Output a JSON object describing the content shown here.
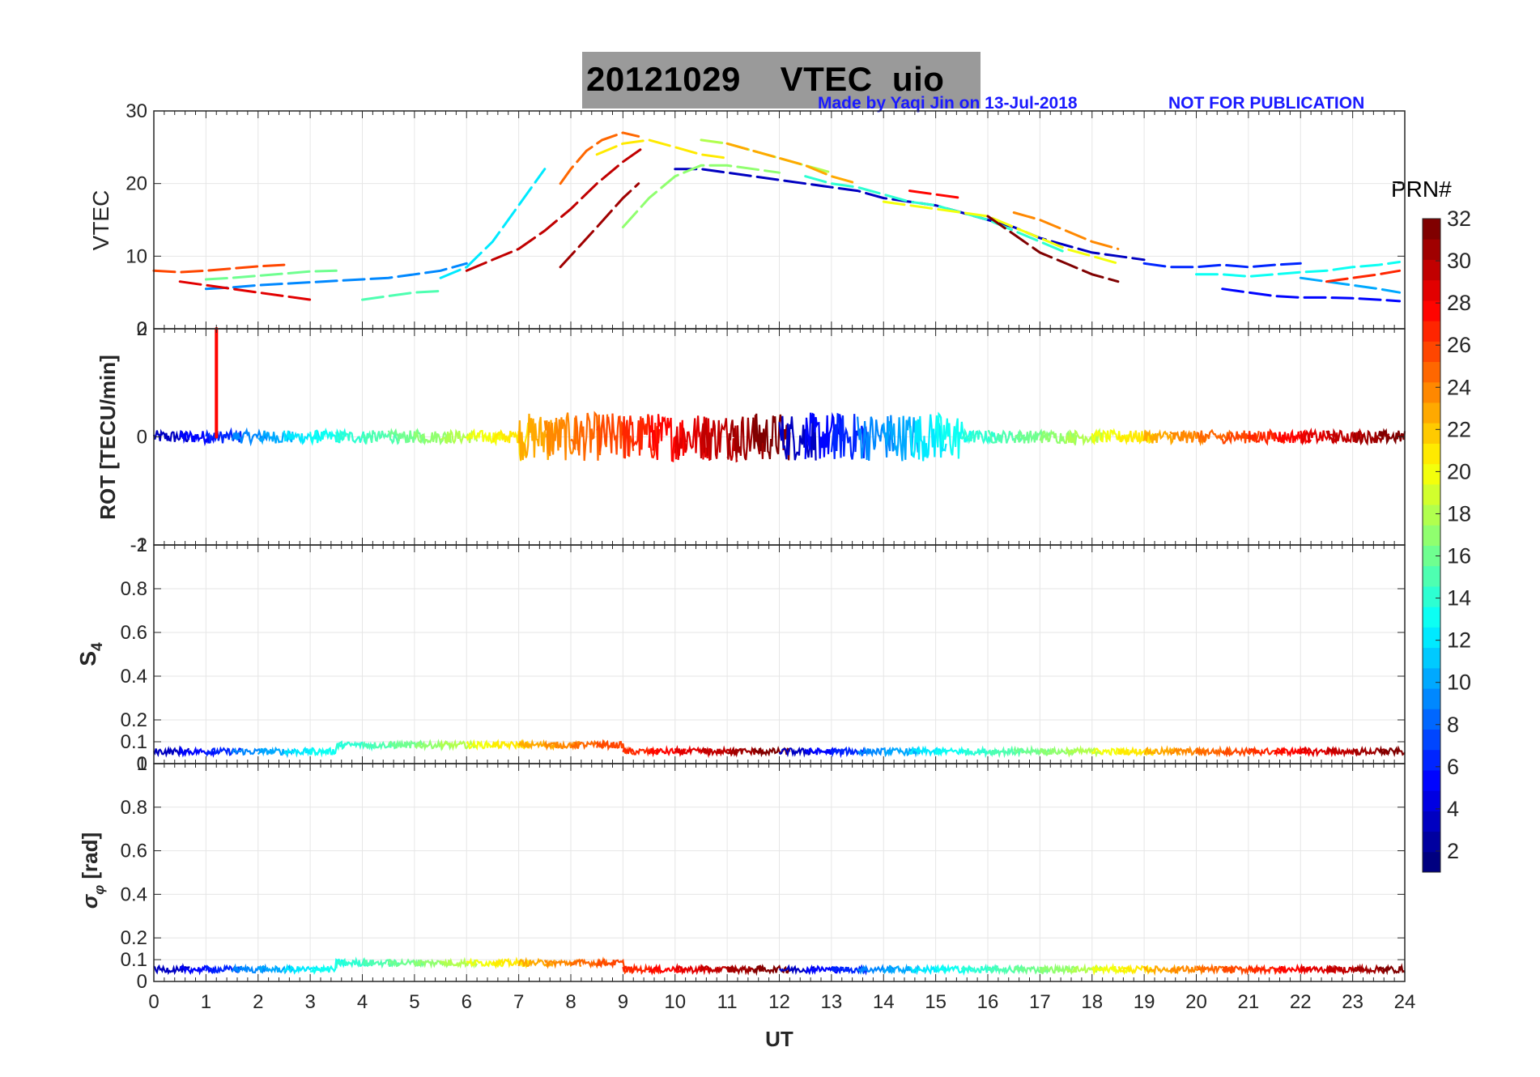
{
  "figure": {
    "title_date": "20121029",
    "title_quantity": "VTEC",
    "title_station": "uio",
    "credit": "Made by Yaqi Jin on 13-Jul-2018",
    "notice": "NOT FOR PUBLICATION"
  },
  "colorbar": {
    "label": "PRN#",
    "ticks": [
      "2",
      "4",
      "6",
      "8",
      "10",
      "12",
      "14",
      "16",
      "18",
      "20",
      "22",
      "24",
      "26",
      "28",
      "30",
      "32"
    ],
    "colormap": "jet",
    "range": [
      1,
      32
    ]
  },
  "chart_data": [
    {
      "type": "line",
      "panel": "vtec",
      "ylabel": "VTEC",
      "ylim": [
        0,
        30
      ],
      "yticks": [
        "0",
        "10",
        "20",
        "30"
      ],
      "xlim": [
        0,
        24
      ],
      "grid": true,
      "series": [
        {
          "prn": 3,
          "name": "PRN 3",
          "x": [
            10.0,
            10.5,
            11.0,
            11.5,
            12.0,
            12.5,
            13.0,
            13.5,
            14.0,
            14.5,
            15.0,
            15.5,
            16.0,
            16.5,
            17.0,
            17.5,
            18.0,
            18.5,
            19.0
          ],
          "y": [
            22.0,
            22.0,
            21.5,
            21.0,
            20.5,
            20.0,
            19.5,
            19.0,
            18.0,
            17.5,
            17.0,
            16.0,
            15.0,
            14.0,
            12.5,
            11.5,
            10.5,
            10.0,
            9.5
          ]
        },
        {
          "prn": 5,
          "name": "PRN 5",
          "x": [
            20.5,
            21.0,
            21.5,
            22.0,
            22.5,
            23.0,
            23.5,
            23.9
          ],
          "y": [
            5.5,
            5.0,
            4.5,
            4.3,
            4.3,
            4.2,
            4.0,
            3.8
          ]
        },
        {
          "prn": 6,
          "name": "PRN 6",
          "x": [
            19.0,
            19.5,
            20.0,
            20.5,
            21.0,
            21.5,
            22.0
          ],
          "y": [
            9.0,
            8.5,
            8.5,
            8.8,
            8.5,
            8.8,
            9.0
          ]
        },
        {
          "prn": 9,
          "name": "PRN 9",
          "x": [
            1.0,
            1.5,
            2.0,
            2.5,
            3.0,
            3.5,
            4.0,
            4.5,
            5.0,
            5.5,
            6.0
          ],
          "y": [
            5.5,
            5.7,
            6.0,
            6.2,
            6.4,
            6.6,
            6.8,
            7.0,
            7.5,
            8.0,
            9.0
          ]
        },
        {
          "prn": 10,
          "name": "PRN 10",
          "x": [
            22.0,
            22.5,
            23.0,
            23.5,
            23.9
          ],
          "y": [
            7.0,
            6.5,
            6.0,
            5.5,
            5.0
          ]
        },
        {
          "prn": 12,
          "name": "PRN 12",
          "x": [
            5.5,
            6.0,
            6.5,
            7.0,
            7.5
          ],
          "y": [
            7.0,
            8.5,
            12.0,
            17.0,
            22.0
          ]
        },
        {
          "prn": 13,
          "name": "PRN 13",
          "x": [
            20.0,
            20.5,
            21.0,
            21.5,
            22.0,
            22.5,
            23.0,
            23.5,
            23.9
          ],
          "y": [
            7.5,
            7.5,
            7.2,
            7.5,
            7.8,
            8.0,
            8.5,
            8.8,
            9.2
          ]
        },
        {
          "prn": 14,
          "name": "PRN 14",
          "x": [
            12.5,
            13.0,
            13.5,
            14.0,
            14.5,
            15.0,
            15.5,
            16.0,
            16.5,
            17.0,
            17.5
          ],
          "y": [
            21.0,
            20.0,
            19.5,
            18.5,
            17.5,
            17.0,
            16.0,
            15.0,
            13.5,
            12.0,
            10.5
          ]
        },
        {
          "prn": 15,
          "name": "PRN 15",
          "x": [
            4.0,
            4.5,
            5.0,
            5.5
          ],
          "y": [
            4.0,
            4.5,
            5.0,
            5.2
          ]
        },
        {
          "prn": 16,
          "name": "PRN 16",
          "x": [
            1.0,
            1.5,
            2.0,
            2.5,
            3.0,
            3.5
          ],
          "y": [
            6.8,
            7.0,
            7.3,
            7.6,
            7.9,
            8.0
          ]
        },
        {
          "prn": 17,
          "name": "PRN 17",
          "x": [
            9.0,
            9.5,
            10.0,
            10.5,
            11.0,
            11.5,
            12.0
          ],
          "y": [
            14.0,
            18.0,
            21.0,
            22.5,
            22.5,
            22.0,
            21.5
          ]
        },
        {
          "prn": 18,
          "name": "PRN 18",
          "x": [
            10.5,
            11.0,
            11.5,
            12.0,
            12.5,
            13.0
          ],
          "y": [
            26.0,
            25.5,
            24.5,
            23.5,
            22.5,
            21.5
          ]
        },
        {
          "prn": 20,
          "name": "PRN 20",
          "x": [
            14.0,
            14.5,
            15.0,
            15.5,
            16.0,
            16.5,
            17.0,
            17.5,
            18.0,
            18.5
          ],
          "y": [
            17.5,
            17.0,
            16.5,
            16.0,
            15.5,
            14.0,
            12.5,
            11.0,
            10.0,
            9.0
          ]
        },
        {
          "prn": 21,
          "name": "PRN 21",
          "x": [
            8.5,
            9.0,
            9.5,
            10.0,
            10.5,
            11.0
          ],
          "y": [
            24.0,
            25.5,
            26.0,
            25.0,
            24.0,
            23.5
          ]
        },
        {
          "prn": 23,
          "name": "PRN 23",
          "x": [
            11.0,
            11.5,
            12.0,
            12.5,
            13.0,
            13.5
          ],
          "y": [
            25.5,
            24.5,
            23.5,
            22.5,
            21.0,
            20.0
          ]
        },
        {
          "prn": 24,
          "name": "PRN 24",
          "x": [
            16.5,
            17.0,
            17.5,
            18.0,
            18.5
          ],
          "y": [
            16.0,
            15.0,
            13.5,
            12.0,
            11.0
          ]
        },
        {
          "prn": 25,
          "name": "PRN 25",
          "x": [
            7.8,
            8.0,
            8.3,
            8.6,
            9.0,
            9.3
          ],
          "y": [
            20.0,
            22.0,
            24.5,
            26.0,
            27.0,
            26.5
          ]
        },
        {
          "prn": 26,
          "name": "PRN 26",
          "x": [
            0.0,
            0.5,
            1.0,
            1.5,
            2.0,
            2.5
          ],
          "y": [
            8.0,
            7.8,
            8.0,
            8.3,
            8.6,
            8.8
          ]
        },
        {
          "prn": 27,
          "name": "PRN 27",
          "x": [
            22.5,
            23.0,
            23.5,
            23.9
          ],
          "y": [
            6.5,
            7.0,
            7.5,
            8.0
          ]
        },
        {
          "prn": 28,
          "name": "PRN 28",
          "x": [
            14.5,
            15.0,
            15.5
          ],
          "y": [
            19.0,
            18.5,
            18.0
          ]
        },
        {
          "prn": 29,
          "name": "PRN 29",
          "x": [
            0.5,
            1.0,
            1.5,
            2.0,
            2.5,
            3.0
          ],
          "y": [
            6.5,
            6.0,
            5.5,
            5.0,
            4.5,
            4.0
          ]
        },
        {
          "prn": 30,
          "name": "PRN 30",
          "x": [
            6.0,
            6.5,
            7.0,
            7.5,
            8.0,
            8.5,
            9.0,
            9.4
          ],
          "y": [
            8.0,
            9.5,
            11.0,
            13.5,
            16.5,
            20.0,
            23.0,
            25.0
          ]
        },
        {
          "prn": 31,
          "name": "PRN 31",
          "x": [
            7.8,
            8.5,
            9.0,
            9.3
          ],
          "y": [
            8.5,
            14.0,
            18.0,
            20.0
          ]
        },
        {
          "prn": 32,
          "name": "PRN 32",
          "x": [
            16.0,
            16.5,
            17.0,
            17.5,
            18.0,
            18.5
          ],
          "y": [
            15.5,
            13.0,
            10.5,
            9.0,
            7.5,
            6.5
          ]
        }
      ]
    },
    {
      "type": "line",
      "panel": "rot",
      "ylabel": "ROT [TECU/min]",
      "ylim": [
        -2,
        2
      ],
      "yticks": [
        "-2",
        "0",
        "2"
      ],
      "xlim": [
        0,
        24
      ],
      "grid": true,
      "annotation": "single spike near 1.2 UT reaching +2 TECU/min",
      "series": [
        {
          "prn": 28,
          "name": "PRN 28 spike",
          "x": [
            1.2,
            1.2
          ],
          "y": [
            0.0,
            2.0
          ]
        }
      ]
    },
    {
      "type": "line",
      "panel": "s4",
      "ylabel": "S4",
      "ylim": [
        0,
        1
      ],
      "yticks": [
        "0",
        "0.1",
        "0.2",
        "0.4",
        "0.6",
        "0.8",
        "1"
      ],
      "xlim": [
        0,
        24
      ],
      "grid": true
    },
    {
      "type": "line",
      "panel": "sigma_phi",
      "ylabel": "σφ [rad]",
      "ylim": [
        0,
        1
      ],
      "yticks": [
        "0",
        "0.1",
        "0.2",
        "0.4",
        "0.6",
        "0.8",
        "1"
      ],
      "xlim": [
        0,
        24
      ],
      "grid": true
    }
  ],
  "xaxis": {
    "label": "UT",
    "ticks": [
      "0",
      "1",
      "2",
      "3",
      "4",
      "5",
      "6",
      "7",
      "8",
      "9",
      "10",
      "11",
      "12",
      "13",
      "14",
      "15",
      "16",
      "17",
      "18",
      "19",
      "20",
      "21",
      "22",
      "23",
      "24"
    ]
  },
  "labels": {
    "vtec": "VTEC",
    "rot": "ROT [TECU/min]",
    "s4_main": "S",
    "s4_sub": "4",
    "sigma_main": "σ",
    "sigma_sub": "φ",
    "sigma_unit": "[rad]"
  }
}
